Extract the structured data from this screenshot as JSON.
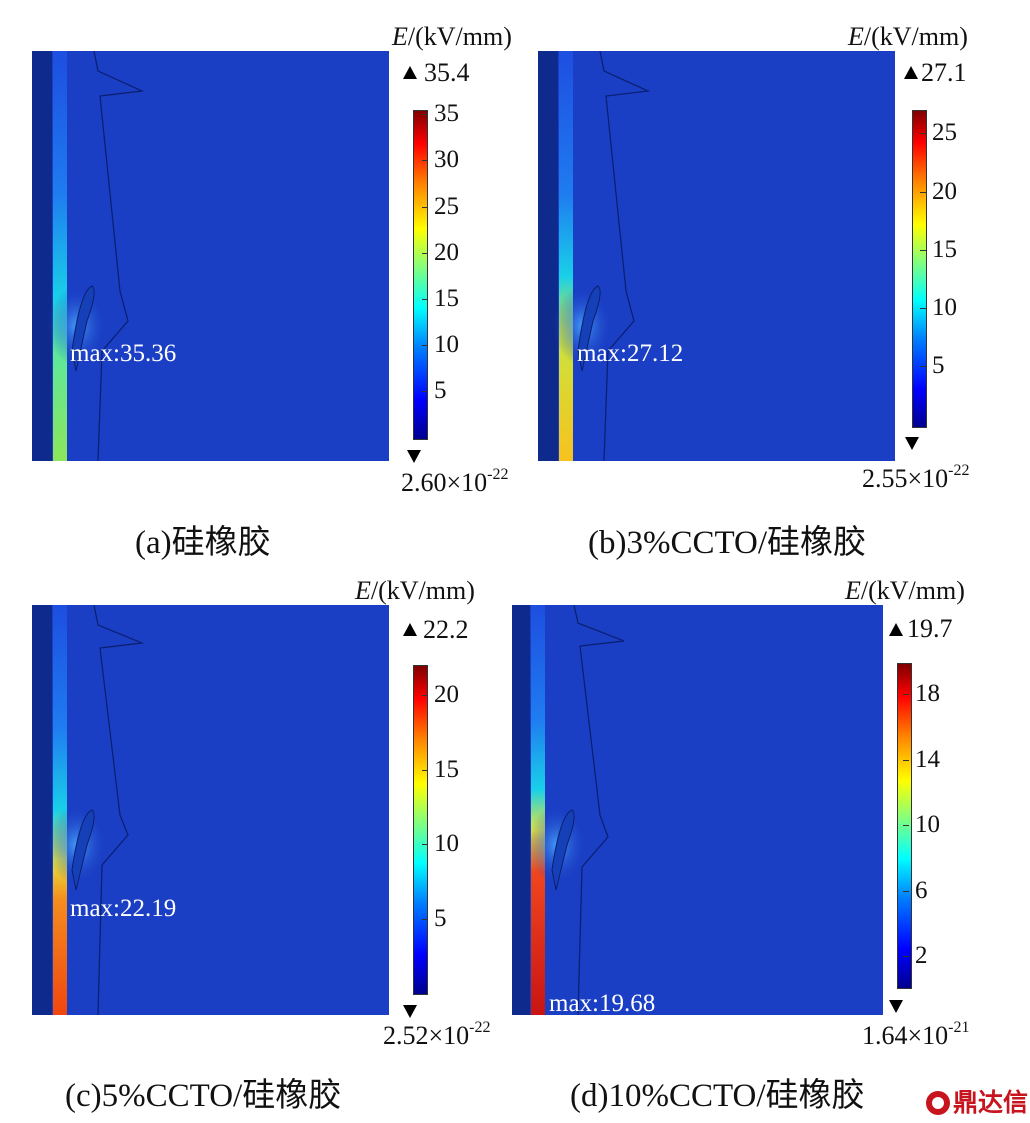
{
  "panels": [
    {
      "unit_symbol": "E",
      "unit_text": "/(kV/mm)",
      "colorbar_max": "35.4",
      "colorbar_min_base": "2.60×10",
      "colorbar_min_exp": "-22",
      "ticks": [
        "35",
        "30",
        "25",
        "20",
        "15",
        "10",
        "5"
      ],
      "max_label": "max:35.36",
      "caption": "(a)硅橡胶",
      "column_color": "#8ce65a"
    },
    {
      "unit_symbol": "E",
      "unit_text": "/(kV/mm)",
      "colorbar_max": "27.1",
      "colorbar_min_base": "2.55×10",
      "colorbar_min_exp": "-22",
      "ticks": [
        "25",
        "20",
        "15",
        "10",
        "5"
      ],
      "max_label": "max:27.12",
      "caption": "(b)3%CCTO/硅橡胶",
      "column_color": "#f7c21e"
    },
    {
      "unit_symbol": "E",
      "unit_text": "/(kV/mm)",
      "colorbar_max": "22.2",
      "colorbar_min_base": "2.52×10",
      "colorbar_min_exp": "-22",
      "ticks": [
        "20",
        "15",
        "10",
        "5"
      ],
      "max_label": "max:22.19",
      "caption": "(c)5%CCTO/硅橡胶",
      "column_color": "#f0460f"
    },
    {
      "unit_symbol": "E",
      "unit_text": "/(kV/mm)",
      "colorbar_max": "19.7",
      "colorbar_min_base": "1.64×10",
      "colorbar_min_exp": "-21",
      "ticks": [
        "18",
        "14",
        "10",
        "6",
        "2"
      ],
      "max_label": "max:19.68",
      "caption": "(d)10%CCTO/硅橡胶",
      "column_color": "#c81414"
    }
  ],
  "watermark": "鼎达信",
  "colors": {
    "field_background": "#1a3ec4",
    "field_dark_edge": "#0e2a8c",
    "colorbar_top": "#800000",
    "colorbar_bottom": "#00008f"
  }
}
